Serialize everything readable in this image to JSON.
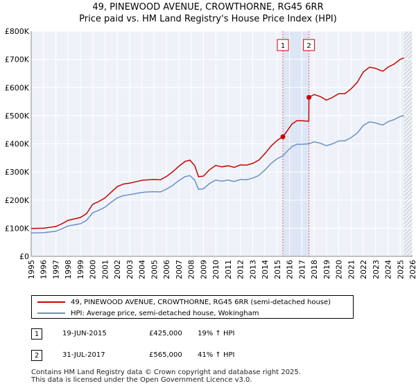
{
  "title_line1": "49, PINEWOOD AVENUE, CROWTHORNE, RG45 6RR",
  "title_line2": "Price paid vs. HM Land Registry's House Price Index (HPI)",
  "chart_data": {
    "type": "line",
    "ylim": [
      0,
      800000
    ],
    "xlim": [
      1995,
      2026
    ],
    "y_ticks": [
      0,
      100000,
      200000,
      300000,
      400000,
      500000,
      600000,
      700000,
      800000
    ],
    "y_tick_labels": [
      "£0",
      "£100K",
      "£200K",
      "£300K",
      "£400K",
      "£500K",
      "£600K",
      "£700K",
      "£800K"
    ],
    "x_ticks": [
      1995,
      1996,
      1997,
      1998,
      1999,
      2000,
      2001,
      2002,
      2003,
      2004,
      2005,
      2006,
      2007,
      2008,
      2009,
      2010,
      2011,
      2012,
      2013,
      2014,
      2015,
      2016,
      2017,
      2018,
      2019,
      2020,
      2021,
      2022,
      2023,
      2024,
      2025,
      2026
    ],
    "grid": true,
    "series": [
      {
        "name": "49, PINEWOOD AVENUE, CROWTHORNE, RG45 6RR (semi-detached house)",
        "color": "#cc0000",
        "x": [
          1995.0,
          1996.0,
          1997.0,
          1997.5,
          1998.0,
          1999.0,
          1999.5,
          2000.0,
          2000.5,
          2001.0,
          2001.5,
          2002.0,
          2002.5,
          2003.0,
          2003.5,
          2004.0,
          2004.5,
          2005.0,
          2005.5,
          2006.0,
          2006.5,
          2007.0,
          2007.5,
          2007.9,
          2008.3,
          2008.6,
          2009.0,
          2009.5,
          2010.0,
          2010.5,
          2011.0,
          2011.5,
          2012.0,
          2012.5,
          2013.0,
          2013.5,
          2014.0,
          2014.5,
          2015.0,
          2015.46,
          2015.8,
          2016.2,
          2016.6,
          2017.0,
          2017.57,
          2017.58,
          2018.0,
          2018.5,
          2019.0,
          2019.5,
          2020.0,
          2020.5,
          2021.0,
          2021.5,
          2022.0,
          2022.5,
          2023.0,
          2023.3,
          2023.6,
          2024.0,
          2024.5,
          2025.0,
          2025.3
        ],
        "values": [
          99000,
          100000,
          106000,
          116000,
          128000,
          138000,
          152000,
          185000,
          195000,
          208000,
          228000,
          248000,
          257000,
          260000,
          265000,
          270000,
          272000,
          273000,
          272000,
          284000,
          300000,
          320000,
          337000,
          342000,
          322000,
          283000,
          285000,
          308000,
          323000,
          318000,
          322000,
          316000,
          325000,
          324000,
          330000,
          342000,
          365000,
          392000,
          412000,
          425000,
          445000,
          470000,
          482000,
          482000,
          480000,
          565000,
          575000,
          568000,
          555000,
          565000,
          578000,
          578000,
          595000,
          618000,
          655000,
          672000,
          668000,
          662000,
          658000,
          672000,
          683000,
          700000,
          705000
        ]
      },
      {
        "name": "HPI: Average price, semi-detached house, Wokingham",
        "color": "#6b8fc7",
        "x": [
          1995.0,
          1996.0,
          1997.0,
          1997.5,
          1998.0,
          1999.0,
          1999.5,
          2000.0,
          2000.5,
          2001.0,
          2001.5,
          2002.0,
          2002.5,
          2003.0,
          2003.5,
          2004.0,
          2004.5,
          2005.0,
          2005.5,
          2006.0,
          2006.5,
          2007.0,
          2007.5,
          2007.9,
          2008.3,
          2008.6,
          2009.0,
          2009.5,
          2010.0,
          2010.5,
          2011.0,
          2011.5,
          2012.0,
          2012.5,
          2013.0,
          2013.5,
          2014.0,
          2014.5,
          2015.0,
          2015.46,
          2015.8,
          2016.2,
          2016.6,
          2017.0,
          2017.58,
          2018.0,
          2018.5,
          2019.0,
          2019.5,
          2020.0,
          2020.5,
          2021.0,
          2021.5,
          2022.0,
          2022.5,
          2023.0,
          2023.3,
          2023.6,
          2024.0,
          2024.5,
          2025.0,
          2025.3
        ],
        "values": [
          83000,
          84000,
          89000,
          98000,
          108000,
          116000,
          128000,
          155000,
          164000,
          175000,
          192000,
          208000,
          216000,
          219000,
          223000,
          227000,
          229000,
          230000,
          229000,
          239000,
          252000,
          269000,
          283000,
          287000,
          270000,
          238000,
          240000,
          259000,
          271000,
          267000,
          271000,
          266000,
          273000,
          272000,
          278000,
          287000,
          307000,
          330000,
          347000,
          357000,
          373000,
          390000,
          398000,
          398000,
          400000,
          407000,
          402000,
          393000,
          400000,
          410000,
          410000,
          422000,
          438000,
          465000,
          478000,
          474000,
          470000,
          467000,
          478000,
          486000,
          497000,
          500000
        ]
      }
    ],
    "transactions": [
      {
        "label": "1",
        "x": 2015.46,
        "value": 425000,
        "date": "19-JUN-2015",
        "price": "£425,000",
        "hpi": "19% ↑ HPI"
      },
      {
        "label": "2",
        "x": 2017.58,
        "value": 565000,
        "date": "31-JUL-2017",
        "price": "£565,000",
        "hpi": "41% ↑ HPI"
      }
    ],
    "shaded_region": [
      2015.46,
      2017.58
    ],
    "hatched_from": 2025.3
  },
  "legend": {
    "series1_label": "49, PINEWOOD AVENUE, CROWTHORNE, RG45 6RR (semi-detached house)",
    "series2_label": "HPI: Average price, semi-detached house, Wokingham"
  },
  "annotations": [
    {
      "label": "1",
      "date": "19-JUN-2015",
      "price": "£425,000",
      "hpi": "19% ↑ HPI"
    },
    {
      "label": "2",
      "date": "31-JUL-2017",
      "price": "£565,000",
      "hpi": "41% ↑ HPI"
    }
  ],
  "footer_line1": "Contains HM Land Registry data © Crown copyright and database right 2025.",
  "footer_line2": "This data is licensed under the Open Government Licence v3.0."
}
